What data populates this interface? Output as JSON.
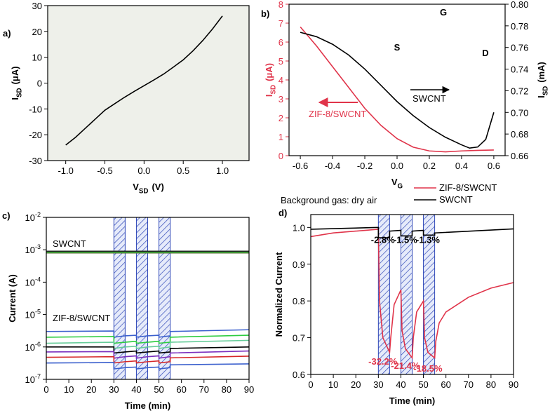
{
  "chart_data": [
    {
      "type": "line",
      "panel_label": "a)",
      "xlabel": {
        "symbol": "V",
        "subscript": "SD",
        "unit": "(V)"
      },
      "ylabel": {
        "symbol": "I",
        "subscript": "SD",
        "unit": "(μA)"
      },
      "x": [
        -1,
        -0.875,
        -0.75,
        -0.625,
        -0.5,
        -0.375,
        -0.25,
        -0.125,
        0,
        0.125,
        0.25,
        0.375,
        0.5,
        0.625,
        0.75,
        0.875,
        1
      ],
      "series": [
        {
          "color": "#000000",
          "values": [
            -24,
            -21,
            -17.5,
            -14,
            -10.5,
            -8,
            -5.5,
            -3.2,
            -1,
            1.2,
            3.5,
            6.2,
            9,
            12.5,
            16.5,
            21,
            26
          ]
        }
      ],
      "xlim": [
        -1.23,
        1.34
      ],
      "ylim": [
        -30,
        30
      ],
      "xticks": [
        {
          "value": -1,
          "label": "-1.0"
        },
        -0.5,
        {
          "value": 0,
          "label": "0.0"
        },
        0.5,
        {
          "value": 1,
          "label": "1.0"
        }
      ],
      "yticks": [
        -30,
        -20,
        -10,
        0,
        10,
        20,
        30
      ],
      "plot_background": "#eef0ea"
    },
    {
      "type": "line",
      "panel_label": "b)",
      "xlabel": {
        "symbol": "V",
        "subscript": "G"
      },
      "ylabel": {
        "symbol": "I",
        "subscript": "SD",
        "unit": "(μA)"
      },
      "y2label": {
        "symbol": "I",
        "subscript": "SD",
        "unit": "(mA)"
      },
      "series": [
        {
          "name": "ZIF-8/SWCNT",
          "color": "#e0344a",
          "x": [
            -0.6,
            -0.5,
            -0.4,
            -0.3,
            -0.2,
            -0.1,
            0,
            0.1,
            0.2,
            0.3,
            0.4,
            0.5,
            0.6
          ],
          "values": [
            6.8,
            5.8,
            4.7,
            3.6,
            2.5,
            1.6,
            0.9,
            0.45,
            0.25,
            0.2,
            0.25,
            0.28,
            0.3
          ]
        },
        {
          "name": "SWCNT",
          "color": "#000000",
          "axis": "y2",
          "x": [
            -0.6,
            -0.5,
            -0.4,
            -0.3,
            -0.2,
            -0.1,
            0,
            0.1,
            0.2,
            0.3,
            0.4,
            0.45,
            0.5,
            0.55,
            0.6
          ],
          "values": [
            0.774,
            0.77,
            0.763,
            0.753,
            0.74,
            0.725,
            0.71,
            0.697,
            0.686,
            0.677,
            0.67,
            0.667,
            0.668,
            0.675,
            0.7
          ]
        }
      ],
      "xlim": [
        -0.67,
        0.67
      ],
      "ylim": [
        0,
        8
      ],
      "y2lim": [
        0.66,
        0.8
      ],
      "xticks": [
        -0.6,
        -0.4,
        -0.2,
        {
          "value": 0,
          "label": "0.0"
        },
        0.2,
        0.4,
        0.6
      ],
      "yticks": [
        0,
        1,
        2,
        3,
        4,
        5,
        6,
        7,
        8
      ],
      "y2ticks": [
        0.66,
        0.68,
        {
          "value": 0.7,
          "label": "0.70"
        },
        0.72,
        0.74,
        0.76,
        0.78,
        {
          "value": 0.8,
          "label": "0.80"
        }
      ],
      "inset_labels": [
        "S",
        "G",
        "D"
      ]
    },
    {
      "type": "line",
      "panel_label": "c)",
      "ylog": true,
      "xlabel": "Time (min)",
      "ylabel": "Current (A)",
      "group_labels": [
        "SWCNT",
        "ZIF-8/SWCNT"
      ],
      "exposure_windows": [
        [
          30,
          35
        ],
        [
          40,
          45
        ],
        [
          50,
          55
        ]
      ],
      "x": [
        0,
        30,
        30,
        35,
        35,
        40,
        40,
        45,
        45,
        50,
        50,
        55,
        55,
        90
      ],
      "series": [
        {
          "color": "#556b2f",
          "x": [
            0,
            90
          ],
          "values": [
            0.0008,
            0.0008
          ]
        },
        {
          "color": "#2ecc40",
          "x": [
            0,
            90
          ],
          "values": [
            0.00085,
            0.00085
          ]
        },
        {
          "color": "#222222",
          "x": [
            0,
            90
          ],
          "values": [
            0.0009,
            0.0009
          ]
        },
        {
          "color": "#3a5fcd",
          "values": [
            3e-06,
            3.1e-06,
            2e-06,
            2.2e-06,
            2.2e-06,
            2.3e-06,
            2e-06,
            2.2e-06,
            2.2e-06,
            2.3e-06,
            2e-06,
            2.2e-06,
            3e-06,
            3.4e-06
          ]
        },
        {
          "color": "#2ecc40",
          "values": [
            2e-06,
            2.1e-06,
            1.3e-06,
            1.4e-06,
            1.4e-06,
            1.5e-06,
            1.3e-06,
            1.4e-06,
            1.4e-06,
            1.5e-06,
            1.3e-06,
            1.4e-06,
            2e-06,
            2.3e-06
          ]
        },
        {
          "color": "#66cc99",
          "values": [
            1.3e-06,
            1.4e-06,
            9e-07,
            1e-06,
            1e-06,
            1.05e-06,
            9e-07,
            1e-06,
            1e-06,
            1.05e-06,
            9e-07,
            1e-06,
            1.4e-06,
            1.6e-06
          ]
        },
        {
          "color": "#000000",
          "values": [
            1e-06,
            1e-06,
            6.5e-07,
            7e-07,
            7e-07,
            7.5e-07,
            6.5e-07,
            7e-07,
            7e-07,
            7.5e-07,
            6.5e-07,
            7e-07,
            9e-07,
            1e-06
          ]
        },
        {
          "color": "#7b2fbe",
          "values": [
            7e-07,
            7.2e-07,
            4.5e-07,
            5e-07,
            5e-07,
            5.3e-07,
            4.5e-07,
            5e-07,
            5e-07,
            5.3e-07,
            4.5e-07,
            5e-07,
            6.5e-07,
            7.5e-07
          ]
        },
        {
          "color": "#d62728",
          "values": [
            4.8e-07,
            5e-07,
            3.2e-07,
            3.5e-07,
            3.5e-07,
            3.7e-07,
            3.2e-07,
            3.5e-07,
            3.5e-07,
            3.7e-07,
            3.2e-07,
            3.5e-07,
            4.6e-07,
            5.2e-07
          ]
        },
        {
          "color": "#3a5fcd",
          "values": [
            3.2e-07,
            3.3e-07,
            2.1e-07,
            2.3e-07,
            2.3e-07,
            2.4e-07,
            2.1e-07,
            2.3e-07,
            2.3e-07,
            2.4e-07,
            2.1e-07,
            2.3e-07,
            2.8e-07,
            3e-07
          ]
        }
      ],
      "xlim": [
        0,
        90
      ],
      "ylim": [
        1e-07,
        0.01
      ],
      "xticks": [
        0,
        10,
        20,
        30,
        40,
        50,
        60,
        70,
        80,
        90
      ],
      "yticks": [
        {
          "value": 1e-07,
          "label": "10",
          "exponent": "-7"
        },
        {
          "value": 1e-06,
          "label": "10",
          "exponent": "-6"
        },
        {
          "value": 1e-05,
          "label": "10",
          "exponent": "-5"
        },
        {
          "value": 0.0001,
          "label": "10",
          "exponent": "-4"
        },
        {
          "value": 0.001,
          "label": "10",
          "exponent": "-3"
        },
        {
          "value": 0.01,
          "label": "10",
          "exponent": "-2"
        }
      ]
    },
    {
      "type": "line",
      "panel_label": "d)",
      "xlabel": "Time (min)",
      "ylabel": "Normalized Current",
      "annotation": "Background gas: dry air",
      "exposure_windows": [
        [
          30,
          35
        ],
        [
          40,
          45
        ],
        [
          50,
          55
        ]
      ],
      "series": [
        {
          "name": "ZIF-8/SWCNT",
          "color": "#e0344a",
          "x": [
            0,
            10,
            20,
            30,
            30.5,
            32,
            35,
            35.5,
            37,
            40,
            40.5,
            42,
            45,
            45.5,
            47,
            50,
            50.5,
            52,
            55,
            55.5,
            57,
            60,
            70,
            80,
            90
          ],
          "values": [
            0.975,
            0.985,
            0.99,
            0.995,
            0.8,
            0.7,
            0.66,
            0.7,
            0.79,
            0.83,
            0.72,
            0.67,
            0.645,
            0.7,
            0.77,
            0.8,
            0.7,
            0.66,
            0.645,
            0.69,
            0.74,
            0.77,
            0.81,
            0.835,
            0.85
          ],
          "drop_labels": [
            "-32.2%",
            "-21.4%",
            "-18.5%"
          ]
        },
        {
          "name": "SWCNT",
          "color": "#000000",
          "x": [
            0,
            30,
            30,
            35,
            35,
            40,
            40,
            45,
            45,
            50,
            50,
            55,
            55,
            90
          ],
          "values": [
            0.995,
            1,
            0.972,
            0.972,
            0.99,
            0.992,
            0.977,
            0.977,
            0.99,
            0.992,
            0.979,
            0.979,
            0.985,
            0.996
          ],
          "drop_labels": [
            "-2.8%",
            "-1.5%",
            "-1.3%"
          ]
        }
      ],
      "xlim": [
        0,
        90
      ],
      "ylim": [
        0.6,
        1.035
      ],
      "xticks": [
        0,
        10,
        20,
        30,
        40,
        50,
        60,
        70,
        80,
        90
      ],
      "yticks": [
        0.6,
        0.7,
        0.8,
        0.9,
        {
          "value": 1,
          "label": "1.0"
        }
      ]
    }
  ]
}
